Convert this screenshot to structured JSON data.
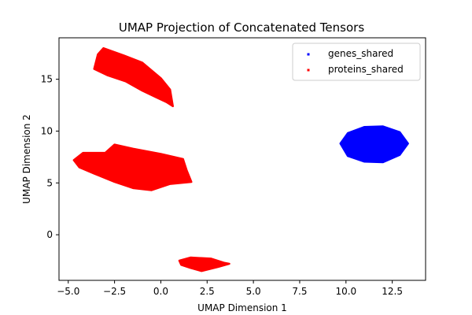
{
  "chart_data": {
    "type": "scatter",
    "title": "UMAP Projection of Concatenated Tensors",
    "xlabel": "UMAP Dimension 1",
    "ylabel": "UMAP Dimension 2",
    "xlim": [
      -5.5,
      14.3
    ],
    "ylim": [
      -4.4,
      19.0
    ],
    "xticks": [
      -5.0,
      -2.5,
      0.0,
      2.5,
      5.0,
      7.5,
      10.0,
      12.5
    ],
    "xtick_labels": [
      "−5.0",
      "−2.5",
      "0.0",
      "2.5",
      "5.0",
      "7.5",
      "10.0",
      "12.5"
    ],
    "yticks": [
      0,
      5,
      10,
      15
    ],
    "ytick_labels": [
      "0",
      "5",
      "10",
      "15"
    ],
    "grid": false,
    "legend_position": "top-right",
    "series": [
      {
        "name": "genes_shared",
        "color": "#0000ff",
        "clusters": [
          {
            "polygon": [
              [
                9.7,
                8.8
              ],
              [
                10.1,
                9.8
              ],
              [
                11.0,
                10.4
              ],
              [
                12.0,
                10.45
              ],
              [
                12.9,
                9.9
              ],
              [
                13.35,
                8.8
              ],
              [
                12.9,
                7.7
              ],
              [
                12.0,
                7.0
              ],
              [
                11.0,
                7.05
              ],
              [
                10.1,
                7.6
              ]
            ]
          }
        ]
      },
      {
        "name": "proteins_shared",
        "color": "#ff0000",
        "clusters": [
          {
            "polygon": [
              [
                -3.6,
                16.0
              ],
              [
                -3.4,
                17.4
              ],
              [
                -3.1,
                18.0
              ],
              [
                -2.0,
                17.3
              ],
              [
                -1.0,
                16.6
              ],
              [
                0.0,
                15.1
              ],
              [
                0.5,
                14.0
              ],
              [
                0.65,
                12.4
              ],
              [
                0.3,
                12.8
              ],
              [
                -0.3,
                13.3
              ],
              [
                -1.0,
                13.9
              ],
              [
                -1.9,
                14.8
              ],
              [
                -2.9,
                15.4
              ]
            ]
          },
          {
            "polygon": [
              [
                -4.7,
                7.2
              ],
              [
                -4.2,
                7.9
              ],
              [
                -3.0,
                7.9
              ],
              [
                -2.5,
                8.7
              ],
              [
                -1.5,
                8.3
              ],
              [
                0.0,
                7.8
              ],
              [
                1.2,
                7.3
              ],
              [
                1.4,
                6.2
              ],
              [
                1.65,
                5.1
              ],
              [
                0.5,
                4.9
              ],
              [
                -0.5,
                4.3
              ],
              [
                -1.5,
                4.5
              ],
              [
                -2.5,
                5.1
              ],
              [
                -3.6,
                5.9
              ],
              [
                -4.4,
                6.5
              ]
            ]
          },
          {
            "polygon": [
              [
                1.0,
                -2.5
              ],
              [
                1.6,
                -2.2
              ],
              [
                2.7,
                -2.3
              ],
              [
                3.4,
                -2.7
              ],
              [
                3.7,
                -2.8
              ],
              [
                3.1,
                -3.1
              ],
              [
                2.2,
                -3.5
              ],
              [
                1.6,
                -3.2
              ],
              [
                1.1,
                -2.9
              ]
            ]
          }
        ]
      }
    ]
  }
}
